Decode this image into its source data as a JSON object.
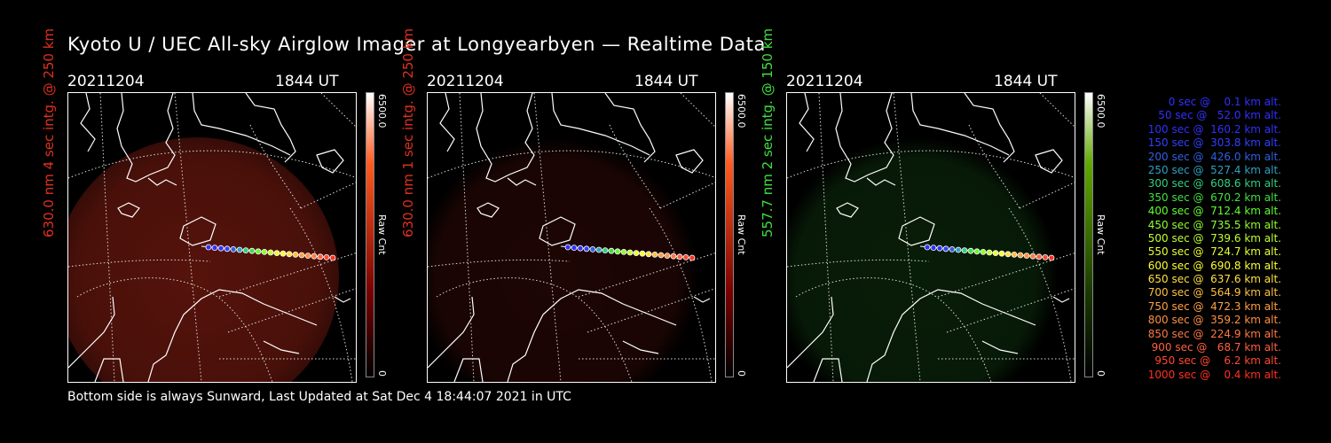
{
  "title": "Kyoto U / UEC All-sky Airglow Imager at Longyearbyen — Realtime Data",
  "footer": "Bottom side is always Sunward, Last Updated at Sat Dec  4 18:44:07 2021 in UTC",
  "panels": [
    {
      "date": "20211204",
      "time": "1844 UT",
      "side_label": "630.0 nm 4 sec intg. @ 250 km",
      "label_color": "#e03020",
      "cbar_max": "6500.0",
      "cbar_min": "0",
      "cbar_unit": "Raw Cnt",
      "glow_color": "#5a140c",
      "glow_opacity": 0.95,
      "cbar_top": "#ffffff",
      "cbar_mid": "#ff5a1e",
      "cbar_low": "#7a0000"
    },
    {
      "date": "20211204",
      "time": "1844 UT",
      "side_label": "630.0 nm 1 sec intg. @ 250 km",
      "label_color": "#e03020",
      "cbar_max": "6500.0",
      "cbar_min": "0",
      "cbar_unit": "Raw Cnt",
      "glow_color": "#2a0806",
      "glow_opacity": 0.7,
      "cbar_top": "#ffffff",
      "cbar_mid": "#ff5a1e",
      "cbar_low": "#7a0000"
    },
    {
      "date": "20211204",
      "time": "1844 UT",
      "side_label": "557.7 nm 2 sec intg. @ 150 km",
      "label_color": "#40e040",
      "cbar_max": "6500.0",
      "cbar_min": "0",
      "cbar_unit": "Raw Cnt",
      "glow_color": "#0c2a0c",
      "glow_opacity": 0.7,
      "cbar_top": "#ffffff",
      "cbar_mid": "#60a800",
      "cbar_low": "#1a3a00"
    }
  ],
  "legend": [
    {
      "text": "0 sec @    0.1 km alt.",
      "color": "#3030ff"
    },
    {
      "text": "50 sec @   52.0 km alt.",
      "color": "#3030ff"
    },
    {
      "text": "100 sec @  160.2 km alt.",
      "color": "#3030ff"
    },
    {
      "text": "150 sec @  303.8 km alt.",
      "color": "#3040ff"
    },
    {
      "text": "200 sec @  426.0 km alt.",
      "color": "#3060e0"
    },
    {
      "text": "250 sec @  527.4 km alt.",
      "color": "#30a0c0"
    },
    {
      "text": "300 sec @  608.6 km alt.",
      "color": "#30d080"
    },
    {
      "text": "350 sec @  670.2 km alt.",
      "color": "#40e040"
    },
    {
      "text": "400 sec @  712.4 km alt.",
      "color": "#60ff30"
    },
    {
      "text": "450 sec @  735.5 km alt.",
      "color": "#90ff30"
    },
    {
      "text": "500 sec @  739.6 km alt.",
      "color": "#c0ff30"
    },
    {
      "text": "550 sec @  724.7 km alt.",
      "color": "#e8ff30"
    },
    {
      "text": "600 sec @  690.8 km alt.",
      "color": "#ffff30"
    },
    {
      "text": "650 sec @  637.6 km alt.",
      "color": "#ffe040"
    },
    {
      "text": "700 sec @  564.9 km alt.",
      "color": "#ffc040"
    },
    {
      "text": "750 sec @  472.3 km alt.",
      "color": "#ffa040"
    },
    {
      "text": "800 sec @  359.2 km alt.",
      "color": "#ff9040"
    },
    {
      "text": "850 sec @  224.9 km alt.",
      "color": "#ff7840"
    },
    {
      "text": "900 sec @   68.7 km alt.",
      "color": "#ff6040"
    },
    {
      "text": "950 sec @    6.2 km alt.",
      "color": "#ff4830"
    },
    {
      "text": "1000 sec @    0.4 km alt.",
      "color": "#ff3020"
    }
  ]
}
